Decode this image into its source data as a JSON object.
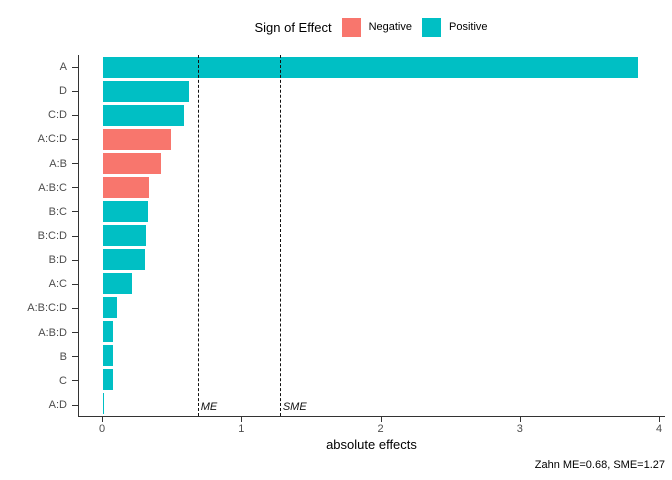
{
  "legend": {
    "title": "Sign of Effect",
    "items": [
      {
        "label": "Negative",
        "color": "#F8766D"
      },
      {
        "label": "Positive",
        "color": "#00BFC4"
      }
    ]
  },
  "chart_data": {
    "type": "bar",
    "orientation": "horizontal",
    "title": "",
    "xlabel": "absolute effects",
    "ylabel": "",
    "xlim": [
      0,
      4
    ],
    "x_ticks": [
      "0",
      "1",
      "2",
      "3",
      "4"
    ],
    "grid": false,
    "legend_position": "top",
    "categories": [
      "A",
      "D",
      "C:D",
      "A:C:D",
      "A:B",
      "A:B:C",
      "B:C",
      "B:C:D",
      "B:D",
      "A:C",
      "A:B:C:D",
      "A:B:D",
      "B",
      "C",
      "A:D"
    ],
    "values": [
      3.84,
      0.62,
      0.58,
      0.49,
      0.42,
      0.33,
      0.32,
      0.31,
      0.3,
      0.21,
      0.1,
      0.075,
      0.075,
      0.07,
      0.01
    ],
    "signs": [
      "Positive",
      "Positive",
      "Positive",
      "Negative",
      "Negative",
      "Negative",
      "Positive",
      "Positive",
      "Positive",
      "Positive",
      "Positive",
      "Positive",
      "Positive",
      "Positive",
      "Positive"
    ],
    "colors": {
      "Negative": "#F8766D",
      "Positive": "#00BFC4"
    },
    "reference_lines": [
      {
        "label": "ME",
        "value": 0.68,
        "style": "dashed"
      },
      {
        "label": "SME",
        "value": 1.27,
        "style": "dashed"
      }
    ],
    "caption": "Zahn ME=0.68, SME=1.27"
  }
}
